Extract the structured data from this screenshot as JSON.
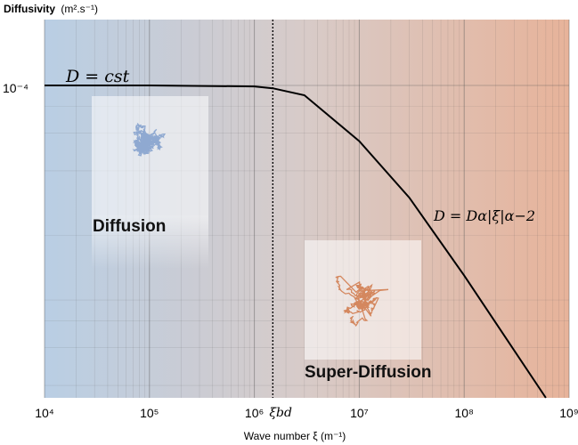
{
  "chart_data": {
    "type": "line",
    "title": "Diffusivity",
    "ylabel_unit": "(m².s⁻¹)",
    "xlabel": "Wave number ξ (m⁻¹)",
    "xscale": "log",
    "yscale": "log",
    "xlim": [
      10000,
      1000000000
    ],
    "x_tick_labels": [
      "10⁴",
      "10⁵",
      "10⁶",
      "10⁷",
      "10⁸",
      "10⁹"
    ],
    "y_tick_labels": [
      "10⁻⁴"
    ],
    "grid": true,
    "background_gradient": [
      "#b9cee4",
      "#e7b39a"
    ],
    "series": [
      {
        "color": "#000000",
        "x": [
          10000,
          100000,
          1000000,
          1500000,
          3000000,
          10000000,
          30000000,
          100000000,
          600000000
        ],
        "y_relative_to_plateau": [
          1.0,
          1.0,
          0.99,
          0.97,
          0.9,
          0.55,
          0.3,
          0.13,
          0.035
        ]
      }
    ],
    "vline": {
      "x": 1500000,
      "label": "ξbd",
      "style": "dotted"
    },
    "annotations": {
      "plateau": "D = cst",
      "powerlaw": "D = Dα|ξ|α−2",
      "diffusion": "Diffusion",
      "superdiffusion": "Super-Diffusion"
    },
    "inset_colors": {
      "diffusion": "#8fa9d1",
      "superdiffusion": "#d4875e"
    }
  }
}
